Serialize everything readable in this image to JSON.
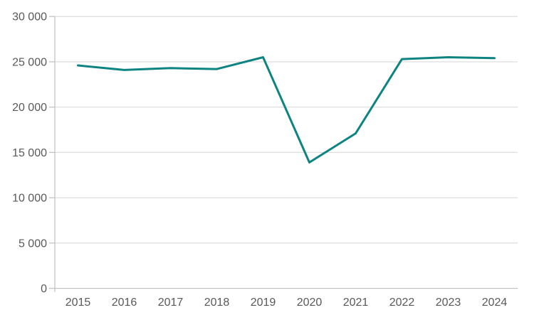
{
  "chart_data": {
    "type": "line",
    "title": "",
    "categories": [
      "2015",
      "2016",
      "2017",
      "2018",
      "2019",
      "2020",
      "2021",
      "2022",
      "2023",
      "2024"
    ],
    "series": [
      {
        "name": "series-1",
        "values": [
          24600,
          24100,
          24300,
          24200,
          25500,
          13900,
          17100,
          25300,
          25500,
          25400
        ]
      }
    ],
    "xlabel": "",
    "ylabel": "",
    "ylim": [
      0,
      30000
    ],
    "ytick_interval": 5000,
    "ytick_values": [
      0,
      5000,
      10000,
      15000,
      20000,
      25000,
      30000
    ],
    "ytick_labels": [
      "0",
      "5 000",
      "10 000",
      "15 000",
      "20 000",
      "25 000",
      "30 000"
    ],
    "grid": "horizontal",
    "legend": "none",
    "colors": {
      "line": "#0e8482",
      "grid": "#d9d9d9",
      "axis": "#c3c3c3",
      "label": "#595959",
      "background": "#ffffff"
    }
  }
}
